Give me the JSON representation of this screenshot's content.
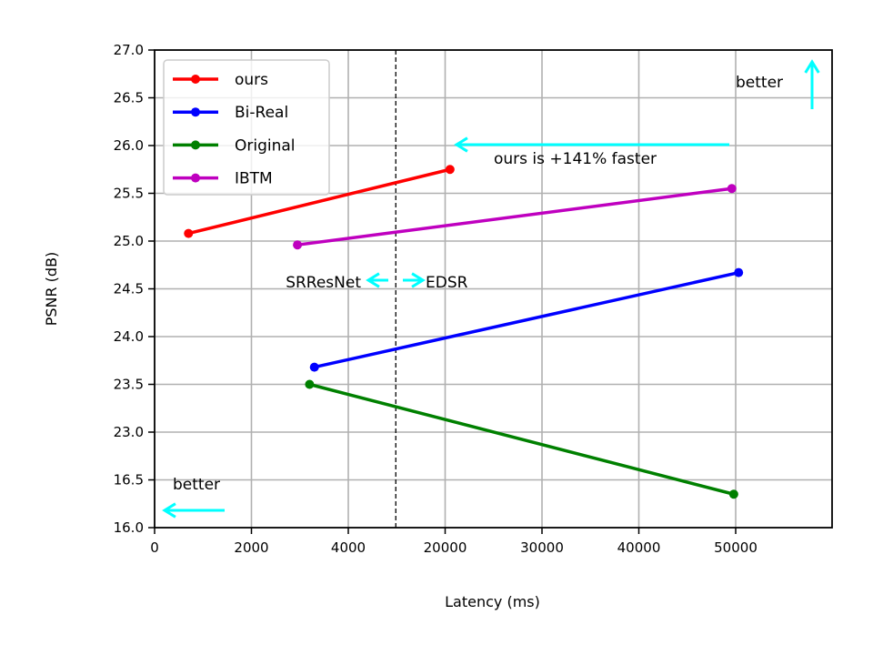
{
  "chart_data": {
    "type": "line",
    "title": "",
    "xlabel": "Latency (ms)",
    "ylabel": "PSNR (dB)",
    "x_tick_labels": [
      "0",
      "2000",
      "4000",
      "20000",
      "30000",
      "40000",
      "50000"
    ],
    "y_tick_labels": [
      "16.0",
      "16.5",
      "23.0",
      "23.5",
      "24.0",
      "24.5",
      "25.0",
      "25.5",
      "26.0",
      "26.5",
      "27.0"
    ],
    "x_scale": "broken: 0–4000 linear, then 20000–50000",
    "y_scale": "broken: 16.0–16.5, then 23.0–27.0",
    "grid": true,
    "legend_position": "top-left",
    "series": [
      {
        "name": "ours",
        "color": "#ff0000",
        "points": [
          {
            "x": 700,
            "y": 25.08
          },
          {
            "x": 20500,
            "y": 25.75
          }
        ]
      },
      {
        "name": "Bi-Real",
        "color": "#0000ff",
        "points": [
          {
            "x": 3300,
            "y": 23.68
          },
          {
            "x": 50300,
            "y": 24.67
          }
        ]
      },
      {
        "name": "Original",
        "color": "#008000",
        "points": [
          {
            "x": 3200,
            "y": 23.5
          },
          {
            "x": 49800,
            "y": 16.35
          }
        ]
      },
      {
        "name": "IBTM",
        "color": "#bf00bf",
        "points": [
          {
            "x": 2950,
            "y": 24.96
          },
          {
            "x": 49600,
            "y": 25.55
          }
        ]
      }
    ],
    "divider_between": [
      "4000",
      "20000"
    ],
    "annotations": {
      "speedup": "ours is +141% faster",
      "better_top": "better",
      "better_bottom": "better",
      "left_model": "SRResNet",
      "right_model": "EDSR"
    },
    "annotation_color": "#00ffff"
  }
}
